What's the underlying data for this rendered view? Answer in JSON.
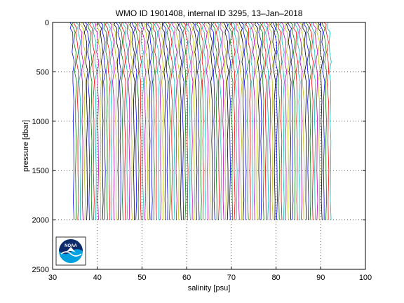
{
  "chart_data": {
    "type": "line",
    "title": "WMO ID 1901408, internal ID 3295, 13–Jan–2018",
    "xlabel": "salinity [psu]",
    "ylabel": "pressure [dbar]",
    "xlim": [
      30,
      100
    ],
    "ylim": [
      0,
      2500
    ],
    "y_reversed": true,
    "xticks": [
      30,
      40,
      50,
      60,
      70,
      80,
      90,
      100
    ],
    "yticks": [
      0,
      500,
      1000,
      1500,
      2000,
      2500
    ],
    "grid": "dotted",
    "profile_count": 116,
    "first_profile_offset_psu": 0,
    "offset_step_psu": 0.5,
    "base_profile": {
      "pressure": [
        0,
        20,
        60,
        100,
        200,
        300,
        400,
        500,
        600,
        800,
        1000,
        1200,
        1500,
        1800,
        2000
      ],
      "salinity": [
        33.9,
        34.0,
        34.2,
        34.35,
        34.5,
        34.58,
        34.62,
        34.64,
        34.65,
        34.67,
        34.69,
        34.7,
        34.71,
        34.72,
        34.72
      ]
    },
    "series_colors": [
      "#0000ff",
      "#008000",
      "#ff0000",
      "#00bfbf",
      "#bf00bf",
      "#bfbf00",
      "#000000"
    ],
    "logo": {
      "text": "NOAA",
      "colors": {
        "top": "#0d2a6b",
        "bottom": "#00a0e0",
        "background": "#ffffff"
      }
    }
  }
}
